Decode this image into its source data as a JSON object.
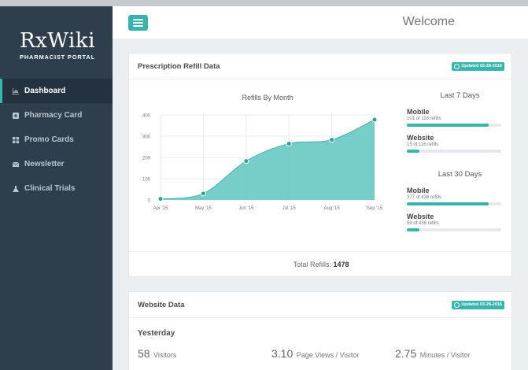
{
  "app": {
    "logo_title": "RxWiki",
    "logo_subtitle": "PHARMACIST PORTAL"
  },
  "sidebar": {
    "items": [
      {
        "label": "Dashboard",
        "icon": "chart-icon",
        "active": true
      },
      {
        "label": "Pharmacy Card",
        "icon": "plus-square-icon",
        "active": false
      },
      {
        "label": "Promo Cards",
        "icon": "grid-icon",
        "active": false
      },
      {
        "label": "Newsletter",
        "icon": "envelope-icon",
        "active": false
      },
      {
        "label": "Clinical Trials",
        "icon": "flask-icon",
        "active": false
      }
    ]
  },
  "header": {
    "title": "Welcome",
    "menu_icon": "hamburger-icon"
  },
  "refill_card": {
    "title": "Prescription Refill Data",
    "badge": "Updated 03-28-2016",
    "total_label": "Total Refills:",
    "total_value": "1478",
    "last7": {
      "heading": "Last 7 Days",
      "items": [
        {
          "name": "Mobile",
          "sub": "101 of 116 refills",
          "value": 101,
          "max": 116
        },
        {
          "name": "Website",
          "sub": "15 of 116 refills",
          "value": 15,
          "max": 116
        }
      ]
    },
    "last30": {
      "heading": "Last 30 Days",
      "items": [
        {
          "name": "Mobile",
          "sub": "377 of 436 refills",
          "value": 377,
          "max": 436
        },
        {
          "name": "Website",
          "sub": "59 of 436 refills",
          "value": 59,
          "max": 436
        }
      ]
    }
  },
  "chart_data": {
    "type": "area",
    "title": "Refills By Month",
    "categories": [
      "Apr '15",
      "May '15",
      "Jun '15",
      "Jul '15",
      "Aug '15",
      "Sep '15"
    ],
    "values": [
      5,
      30,
      183,
      265,
      283,
      378
    ],
    "ylim": [
      0,
      400
    ],
    "yticks": [
      "0",
      "100",
      "200",
      "300",
      "400"
    ],
    "grid": true,
    "color": "#5fc6c0",
    "point_color": "#2aa39b"
  },
  "website_card": {
    "title": "Website Data",
    "badge": "Updated 03-28-2016",
    "section": "Yesterday",
    "metrics": [
      {
        "value": "58",
        "label": "Visitors"
      },
      {
        "value": "3.10",
        "label": "Page Views / Visitor"
      },
      {
        "value": "2.75",
        "label": "Minutes / Visitor"
      }
    ]
  }
}
